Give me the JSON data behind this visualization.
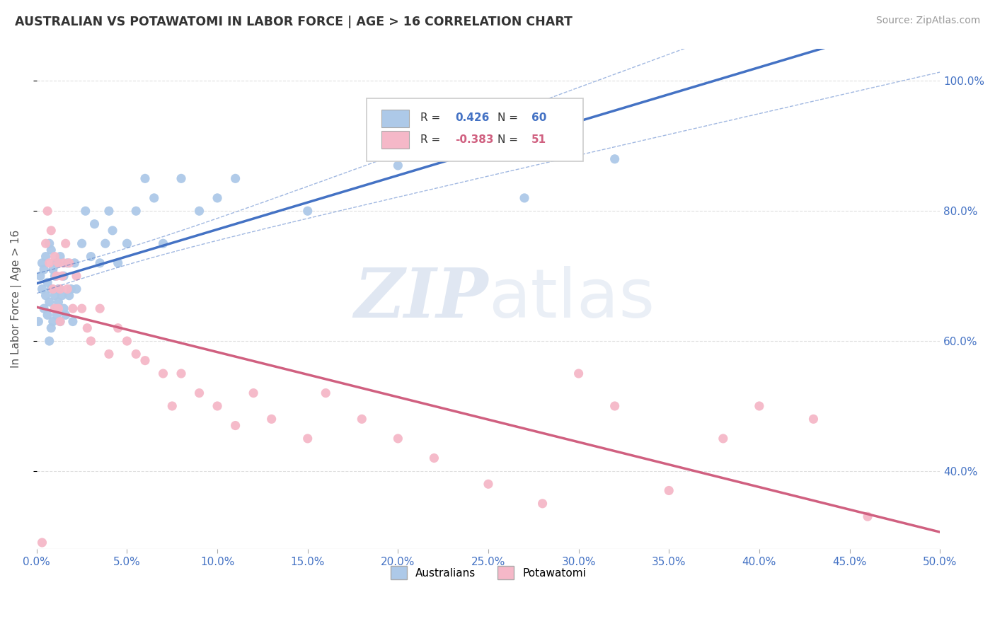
{
  "title": "AUSTRALIAN VS POTAWATOMI IN LABOR FORCE | AGE > 16 CORRELATION CHART",
  "source": "Source: ZipAtlas.com",
  "ylabel": "In Labor Force | Age > 16",
  "xlim": [
    0.0,
    0.5
  ],
  "ylim": [
    0.28,
    1.05
  ],
  "xticks": [
    0.0,
    0.05,
    0.1,
    0.15,
    0.2,
    0.25,
    0.3,
    0.35,
    0.4,
    0.45,
    0.5
  ],
  "yticks": [
    0.4,
    0.6,
    0.8,
    1.0
  ],
  "australian_R": 0.426,
  "australian_N": 60,
  "potawatomi_R": -0.383,
  "potawatomi_N": 51,
  "australian_dot_color": "#adc9e8",
  "potawatomi_dot_color": "#f5b8c8",
  "australian_line_color": "#4472c4",
  "potawatomi_line_color": "#d06080",
  "ci_line_color": "#4472c4",
  "watermark_color": "#ccd8ea",
  "background_color": "#ffffff",
  "grid_color": "#d8d8d8",
  "tick_color": "#4472c4",
  "label_color": "#555555",
  "australian_x": [
    0.001,
    0.002,
    0.003,
    0.003,
    0.004,
    0.004,
    0.005,
    0.005,
    0.006,
    0.006,
    0.007,
    0.007,
    0.007,
    0.008,
    0.008,
    0.008,
    0.009,
    0.009,
    0.01,
    0.01,
    0.01,
    0.011,
    0.011,
    0.012,
    0.012,
    0.013,
    0.013,
    0.014,
    0.015,
    0.015,
    0.016,
    0.017,
    0.018,
    0.019,
    0.02,
    0.021,
    0.022,
    0.025,
    0.027,
    0.03,
    0.032,
    0.035,
    0.038,
    0.04,
    0.042,
    0.045,
    0.05,
    0.055,
    0.06,
    0.065,
    0.07,
    0.08,
    0.09,
    0.1,
    0.11,
    0.15,
    0.2,
    0.23,
    0.27,
    0.32
  ],
  "australian_y": [
    0.63,
    0.7,
    0.72,
    0.68,
    0.65,
    0.71,
    0.67,
    0.73,
    0.64,
    0.69,
    0.66,
    0.75,
    0.6,
    0.74,
    0.62,
    0.68,
    0.63,
    0.71,
    0.67,
    0.65,
    0.7,
    0.64,
    0.72,
    0.66,
    0.68,
    0.63,
    0.73,
    0.67,
    0.65,
    0.7,
    0.64,
    0.72,
    0.67,
    0.68,
    0.63,
    0.72,
    0.68,
    0.75,
    0.8,
    0.73,
    0.78,
    0.72,
    0.75,
    0.8,
    0.77,
    0.72,
    0.75,
    0.8,
    0.85,
    0.82,
    0.75,
    0.85,
    0.8,
    0.82,
    0.85,
    0.8,
    0.87,
    0.9,
    0.82,
    0.88
  ],
  "potawatomi_x": [
    0.003,
    0.005,
    0.006,
    0.007,
    0.008,
    0.009,
    0.01,
    0.01,
    0.011,
    0.012,
    0.012,
    0.013,
    0.013,
    0.014,
    0.015,
    0.016,
    0.017,
    0.018,
    0.02,
    0.022,
    0.025,
    0.028,
    0.03,
    0.035,
    0.04,
    0.045,
    0.05,
    0.055,
    0.06,
    0.07,
    0.075,
    0.08,
    0.09,
    0.1,
    0.11,
    0.12,
    0.13,
    0.15,
    0.16,
    0.18,
    0.2,
    0.22,
    0.25,
    0.28,
    0.3,
    0.32,
    0.35,
    0.38,
    0.4,
    0.43,
    0.46
  ],
  "potawatomi_y": [
    0.29,
    0.75,
    0.8,
    0.72,
    0.77,
    0.68,
    0.73,
    0.65,
    0.7,
    0.72,
    0.65,
    0.68,
    0.63,
    0.7,
    0.72,
    0.75,
    0.68,
    0.72,
    0.65,
    0.7,
    0.65,
    0.62,
    0.6,
    0.65,
    0.58,
    0.62,
    0.6,
    0.58,
    0.57,
    0.55,
    0.5,
    0.55,
    0.52,
    0.5,
    0.47,
    0.52,
    0.48,
    0.45,
    0.52,
    0.48,
    0.45,
    0.42,
    0.38,
    0.35,
    0.55,
    0.5,
    0.37,
    0.45,
    0.5,
    0.48,
    0.33
  ]
}
